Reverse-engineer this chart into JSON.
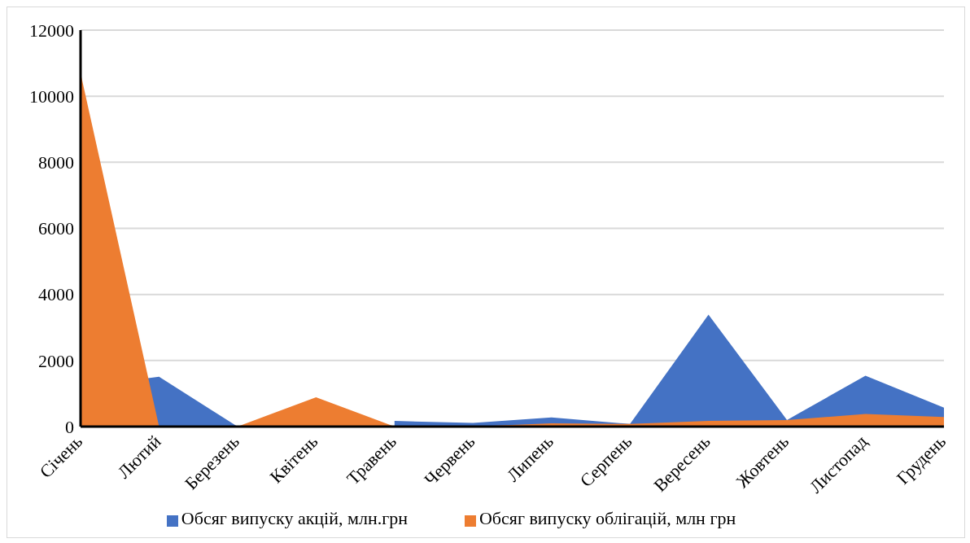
{
  "chart_data": {
    "type": "area",
    "categories": [
      "Січень",
      "Лютий",
      "Березень",
      "Квітень",
      "Травень",
      "Червень",
      "Липень",
      "Серпень",
      "Вересень",
      "Жовтень",
      "Листопад",
      "Грудень"
    ],
    "series": [
      {
        "name": "Обсяг випуску акцій, млн.грн",
        "color": "#4472c4",
        "values": [
          1200,
          1510,
          0,
          null,
          170,
          110,
          280,
          80,
          3390,
          200,
          1540,
          570
        ]
      },
      {
        "name": "Обсяг випуску облігацій, млн грн",
        "color": "#ed7d31",
        "values": [
          10700,
          0,
          0,
          890,
          0,
          0,
          100,
          80,
          170,
          200,
          380,
          290
        ]
      }
    ],
    "ylim": [
      0,
      12000
    ],
    "yticks": [
      0,
      2000,
      4000,
      6000,
      8000,
      10000,
      12000
    ],
    "grid": "y",
    "legend": "bottom"
  }
}
